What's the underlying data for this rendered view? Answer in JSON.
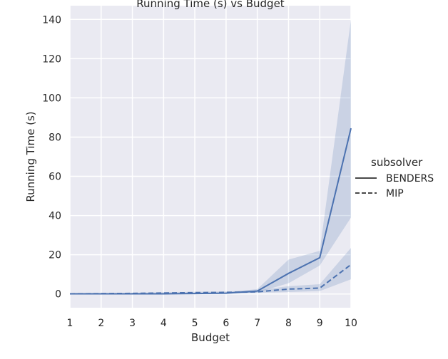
{
  "chart_data": {
    "type": "line",
    "title": "Running Time (s) vs Budget",
    "xlabel": "Budget",
    "ylabel": "Running Time (s)",
    "xlim": [
      1,
      10
    ],
    "ylim": [
      -7,
      147
    ],
    "xticks": [
      1,
      2,
      3,
      4,
      5,
      6,
      7,
      8,
      9,
      10
    ],
    "yticks": [
      0,
      20,
      40,
      60,
      80,
      100,
      120,
      140
    ],
    "grid": true,
    "background": "#eaeaf2",
    "line_color": "#4c72b0",
    "legend": {
      "title": "subsolver",
      "placement": "right"
    },
    "x": [
      1,
      2,
      3,
      4,
      5,
      6,
      7,
      8,
      9,
      10
    ],
    "series": [
      {
        "name": "BENDERS",
        "style": "solid",
        "values": [
          0.1,
          0.1,
          0.1,
          0.1,
          0.2,
          0.4,
          1.5,
          10.5,
          18.5,
          84.5
        ],
        "ci_low": [
          0.0,
          0.0,
          0.0,
          0.0,
          0.0,
          0.1,
          0.8,
          5.5,
          14.5,
          39.0
        ],
        "ci_high": [
          0.2,
          0.2,
          0.2,
          0.3,
          0.5,
          0.8,
          2.5,
          17.5,
          22.0,
          140.0
        ]
      },
      {
        "name": "MIP",
        "style": "dashed",
        "values": [
          0.1,
          0.2,
          0.3,
          0.5,
          0.7,
          0.8,
          1.1,
          2.5,
          3.0,
          15.0
        ],
        "ci_low": [
          0.0,
          0.0,
          0.1,
          0.2,
          0.3,
          0.4,
          0.6,
          1.0,
          1.5,
          7.5
        ],
        "ci_high": [
          0.2,
          0.4,
          0.6,
          0.9,
          1.1,
          1.3,
          1.8,
          4.0,
          5.0,
          23.5
        ]
      }
    ]
  }
}
